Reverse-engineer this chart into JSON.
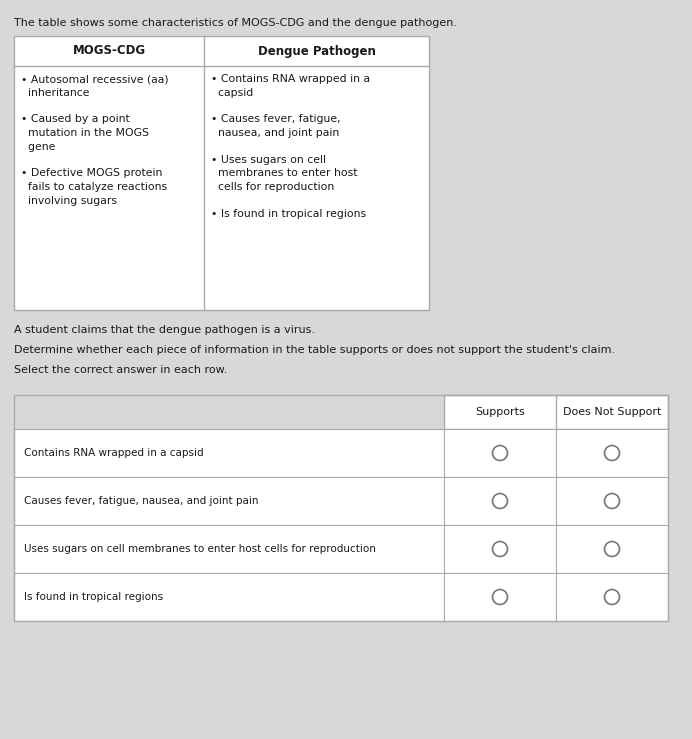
{
  "intro_text": "The table shows some characteristics of MOGS-CDG and the dengue pathogen.",
  "table1_headers": [
    "MOGS-CDG",
    "Dengue Pathogen"
  ],
  "col1_lines": [
    "• Autosomal recessive (aa)",
    "  inheritance",
    "",
    "• Caused by a point",
    "  mutation in the MOGS",
    "  gene",
    "",
    "• Defective MOGS protein",
    "  fails to catalyze reactions",
    "  involving sugars"
  ],
  "col2_lines": [
    "• Contains RNA wrapped in a",
    "  capsid",
    "",
    "• Causes fever, fatigue,",
    "  nausea, and joint pain",
    "",
    "• Uses sugars on cell",
    "  membranes to enter host",
    "  cells for reproduction",
    "",
    "• Is found in tropical regions"
  ],
  "claim_text": "A student claims that the dengue pathogen is a virus.",
  "determine_text": "Determine whether each piece of information in the table supports or does not support the student's claim.",
  "select_text": "Select the correct answer in each row.",
  "table2_col_headers": [
    "Supports",
    "Does Not Support"
  ],
  "table2_rows": [
    "Contains RNA wrapped in a capsid",
    "Causes fever, fatigue, nausea, and joint pain",
    "Uses sugars on cell membranes to enter host cells for reproduction",
    "Is found in tropical regions"
  ],
  "bg_color": "#d8d8d8",
  "table_bg": "#ffffff",
  "border_color": "#aaaaaa",
  "text_color": "#1a1a1a",
  "circle_color": "#777777",
  "header_fontsize": 8.5,
  "body_fontsize": 7.8,
  "intro_fontsize": 8.0
}
